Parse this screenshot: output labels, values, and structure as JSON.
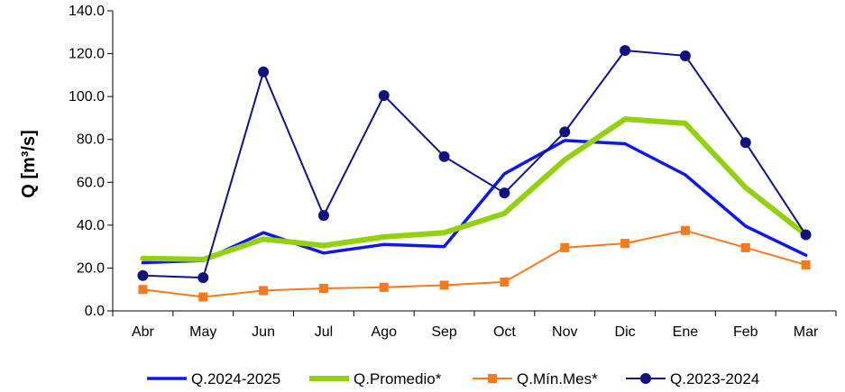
{
  "chart_data": {
    "type": "line",
    "title": "",
    "xlabel": "",
    "ylabel": "Q [m³/s]",
    "ylim": [
      0,
      140
    ],
    "yticks": [
      "0.0",
      "20.0",
      "40.0",
      "60.0",
      "80.0",
      "100.0",
      "120.0",
      "140.0"
    ],
    "categories": [
      "Abr",
      "May",
      "Jun",
      "Jul",
      "Ago",
      "Sep",
      "Oct",
      "Nov",
      "Dic",
      "Ene",
      "Feb",
      "Mar"
    ],
    "grid": false,
    "legend_position": "bottom",
    "series": [
      {
        "name": "Q.2024-2025",
        "color": "#0f18e6",
        "marker": "none",
        "values": [
          22.5,
          23.5,
          36.5,
          27,
          31,
          30,
          64,
          79.5,
          78,
          63.5,
          39.5,
          26
        ]
      },
      {
        "name": "Q.Promedio*",
        "color": "#92d10f",
        "marker": "none",
        "values": [
          24.5,
          24,
          33.5,
          30.5,
          34.5,
          36.5,
          45.5,
          70.5,
          89.5,
          87.5,
          57.5,
          35.5
        ]
      },
      {
        "name": "Q.Mín.Mes*",
        "color": "#f47a20",
        "marker": "square",
        "values": [
          10,
          6.5,
          9.5,
          10.5,
          11,
          12,
          13.5,
          29.5,
          31.5,
          37.5,
          29.5,
          21.5
        ]
      },
      {
        "name": "Q.2023-2024",
        "color": "#13137f",
        "marker": "circle",
        "values": [
          16.5,
          15.5,
          111.5,
          44.5,
          100.5,
          72,
          55,
          83.5,
          121.5,
          119,
          78.5,
          35.5
        ]
      }
    ]
  }
}
